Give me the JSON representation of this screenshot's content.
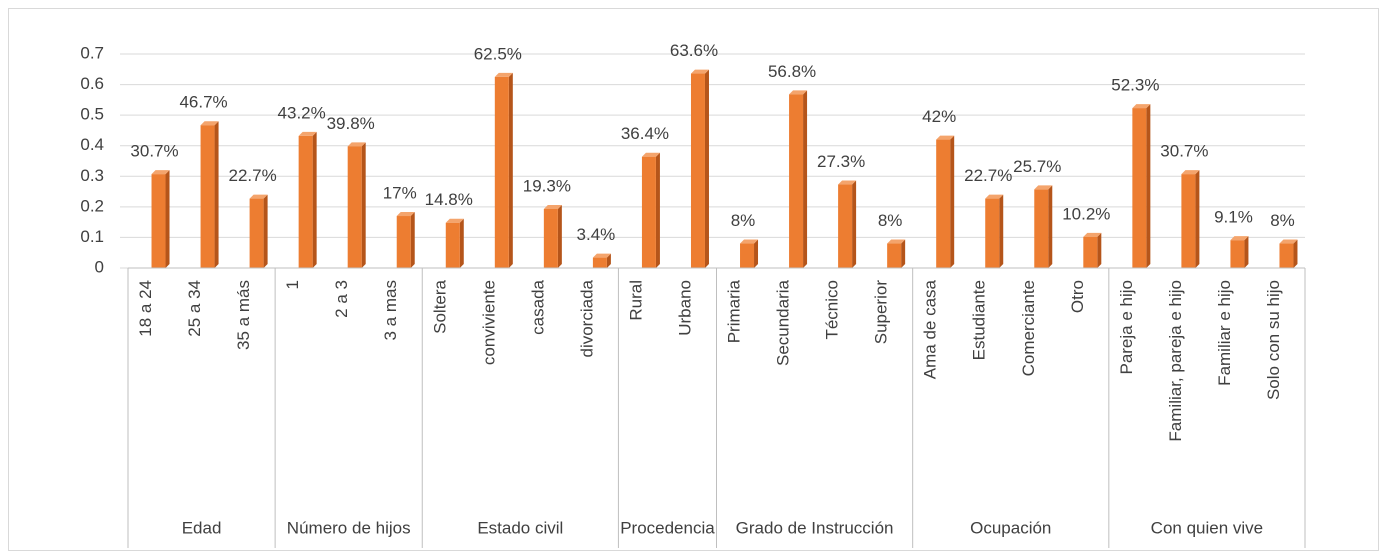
{
  "chart_data": {
    "type": "bar",
    "color": "#ed7d31",
    "grid": true,
    "ylim": [
      0,
      0.7
    ],
    "yticks": [
      0,
      0.1,
      0.2,
      0.3,
      0.4,
      0.5,
      0.6,
      0.7
    ],
    "groups": [
      {
        "name": "Edad",
        "categories": [
          "18 a 24",
          "25 a 34",
          "35 a más"
        ],
        "values": [
          0.307,
          0.467,
          0.227
        ],
        "value_labels": [
          "30.7%",
          "46.7%",
          "22.7%"
        ]
      },
      {
        "name": "Número de hijos",
        "categories": [
          "1",
          "2 a 3",
          "3 a mas"
        ],
        "values": [
          0.432,
          0.398,
          0.17
        ],
        "value_labels": [
          "43.2%",
          "39.8%",
          "17%"
        ]
      },
      {
        "name": "Estado civil",
        "categories": [
          "Soltera",
          "conviviente",
          "casada",
          "divorciada"
        ],
        "values": [
          0.148,
          0.625,
          0.193,
          0.034
        ],
        "value_labels": [
          "14.8%",
          "62.5%",
          "19.3%",
          "3.4%"
        ]
      },
      {
        "name": "Procedencia",
        "categories": [
          "Rural",
          "Urbano"
        ],
        "values": [
          0.364,
          0.636
        ],
        "value_labels": [
          "36.4%",
          "63.6%"
        ]
      },
      {
        "name": "Grado de Instrucción",
        "categories": [
          "Primaria",
          "Secundaria",
          "Técnico",
          "Superior"
        ],
        "values": [
          0.08,
          0.568,
          0.273,
          0.08
        ],
        "value_labels": [
          "8%",
          "56.8%",
          "27.3%",
          "8%"
        ]
      },
      {
        "name": "Ocupación",
        "categories": [
          "Ama de casa",
          "Estudiante",
          "Comerciante",
          "Otro"
        ],
        "values": [
          0.42,
          0.227,
          0.257,
          0.102
        ],
        "value_labels": [
          "42%",
          "22.7%",
          "25.7%",
          "10.2%"
        ]
      },
      {
        "name": "Con quien vive",
        "categories": [
          "Pareja e hijo",
          "Familiar, pareja e hijo",
          "Familiar e hijo",
          "Solo con su hijo"
        ],
        "values": [
          0.523,
          0.307,
          0.091,
          0.08
        ],
        "value_labels": [
          "52.3%",
          "30.7%",
          "9.1%",
          "8%"
        ]
      }
    ]
  }
}
